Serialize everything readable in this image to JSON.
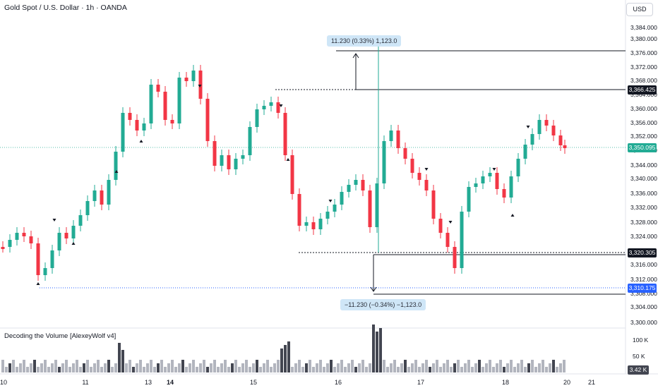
{
  "header": {
    "title": "Gold Spot / U.S. Dollar · 1h · OANDA"
  },
  "currency_badge": "USD",
  "indicator": {
    "title": "Decoding the Volume [AlexeyWolf v4]"
  },
  "price_axis": {
    "ticks": [
      "3,384.000",
      "3,380.000",
      "3,376.000",
      "3,372.000",
      "3,368.000",
      "3,364.000",
      "3,360.000",
      "3,356.000",
      "3,352.000",
      "3,348.000",
      "3,344.000",
      "3,340.000",
      "3,336.000",
      "3,332.000",
      "3,328.000",
      "3,324.000",
      "3,316.000",
      "3,312.000",
      "3,308.000",
      "3,304.000",
      "3,300.000"
    ],
    "highlight_high": "3,366.425",
    "highlight_mid": "3,320.305",
    "highlight_low": "3,310.175",
    "current_price": "3,350.095"
  },
  "volume_axis": {
    "ticks": [
      "100 K",
      "50 K"
    ],
    "current": "3.42 K"
  },
  "time_axis": {
    "labels": [
      {
        "text": "10",
        "bold": false
      },
      {
        "text": "11",
        "bold": false
      },
      {
        "text": "13",
        "bold": false
      },
      {
        "text": "14",
        "bold": true
      },
      {
        "text": "15",
        "bold": false
      },
      {
        "text": "16",
        "bold": false
      },
      {
        "text": "17",
        "bold": false
      },
      {
        "text": "18",
        "bold": false
      },
      {
        "text": "20",
        "bold": false
      },
      {
        "text": "21",
        "bold": false
      }
    ]
  },
  "measurements": {
    "up_label": "11.230 (0.33%) 1,123.0",
    "down_label": "−11.230 (−0.34%) −1,123.0"
  },
  "colors": {
    "up": "#22ab94",
    "down": "#f23645",
    "volume_light": "#b2b5be",
    "volume_dark": "#434651",
    "measure_fill": "#cfe6f7"
  }
}
